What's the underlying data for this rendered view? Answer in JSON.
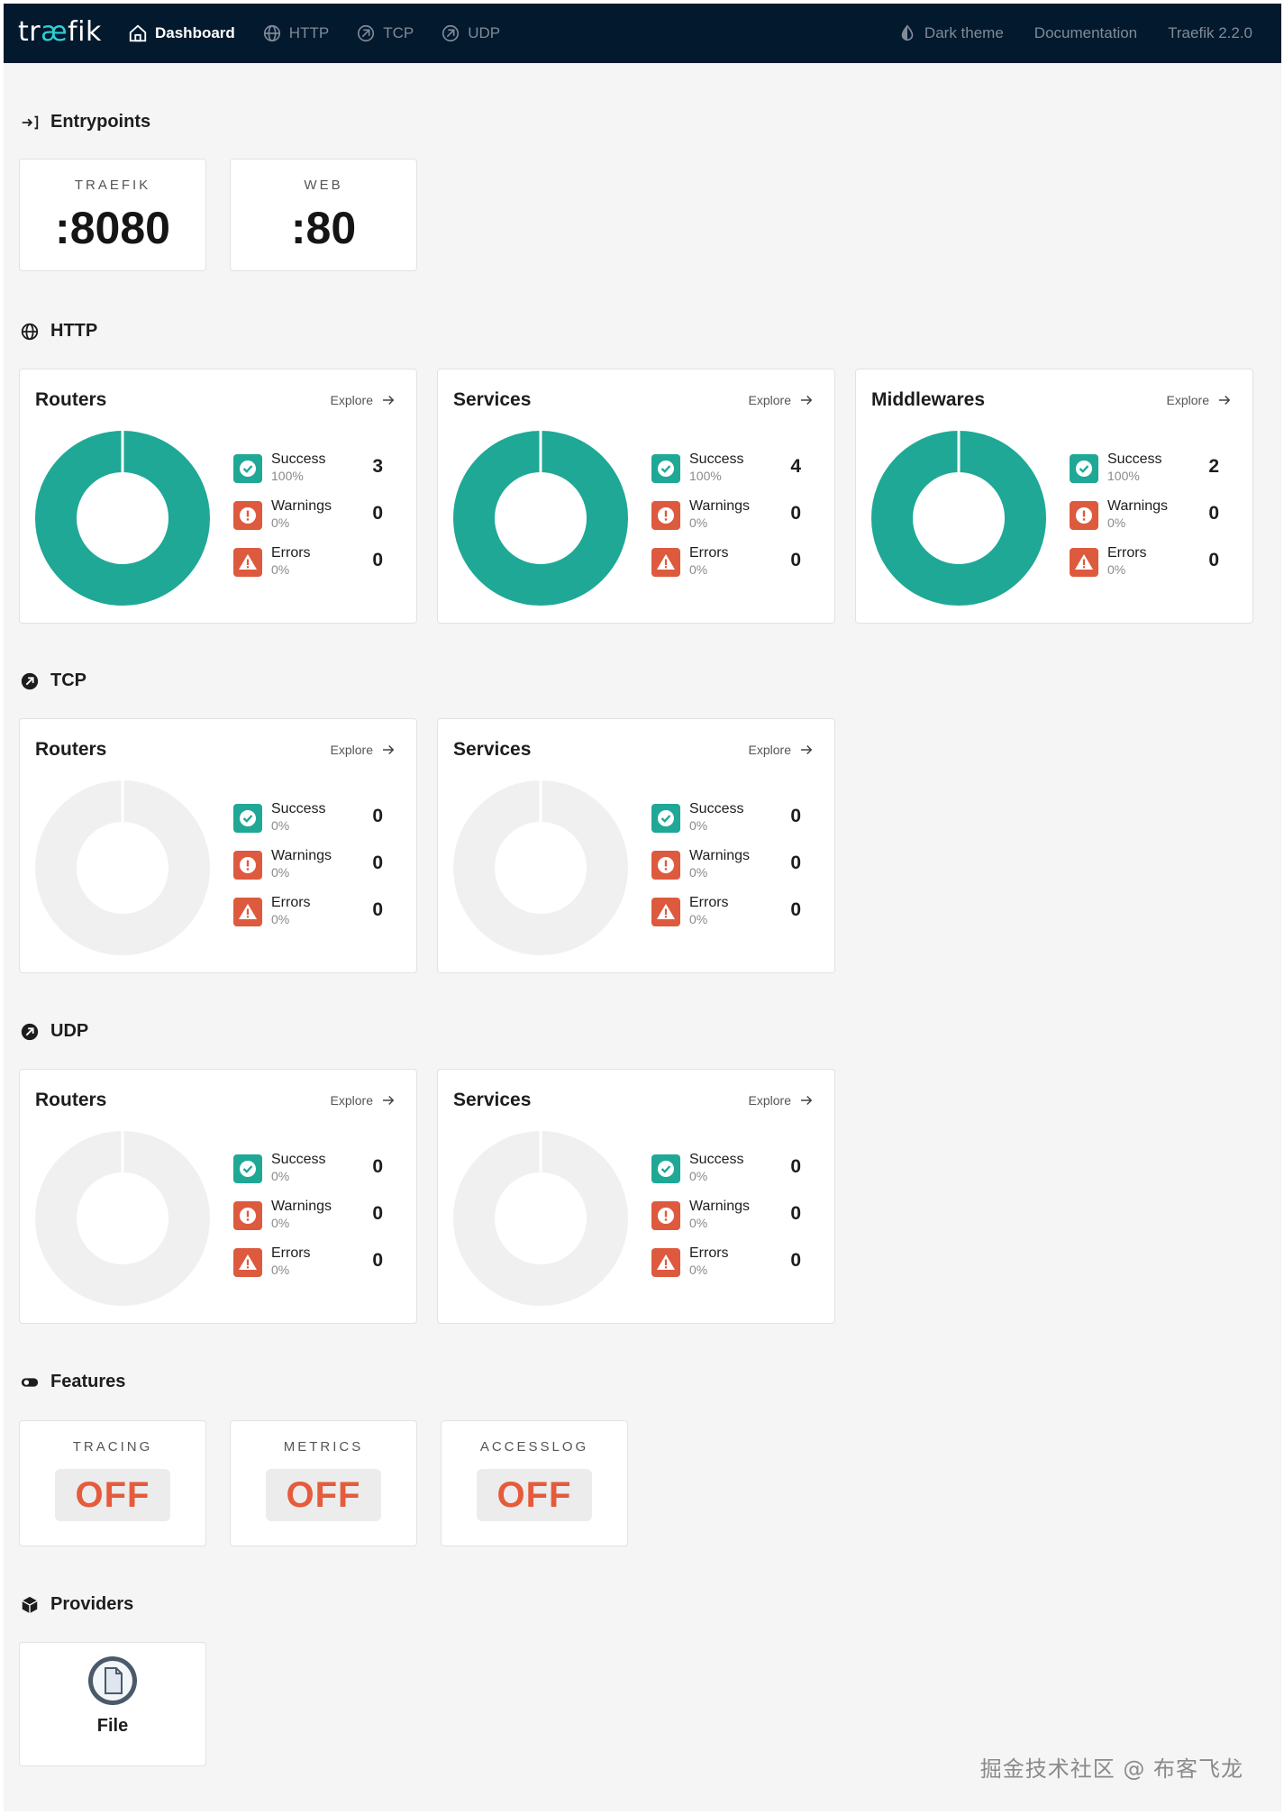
{
  "app": {
    "logo_prefix": "tr",
    "logo_ae": "æ",
    "logo_suffix": "fik"
  },
  "nav": {
    "items": [
      {
        "label": "Dashboard",
        "icon": "home-icon",
        "active": true
      },
      {
        "label": "HTTP",
        "icon": "globe-icon",
        "active": false
      },
      {
        "label": "TCP",
        "icon": "tcp-icon",
        "active": false
      },
      {
        "label": "UDP",
        "icon": "udp-icon",
        "active": false
      }
    ],
    "right": {
      "theme": "Dark theme",
      "docs": "Documentation",
      "version": "Traefik 2.2.0"
    }
  },
  "entrypoints": {
    "title": "Entrypoints",
    "items": [
      {
        "name": "TRAEFIK",
        "port": ":8080"
      },
      {
        "name": "WEB",
        "port": ":80"
      }
    ]
  },
  "sections": {
    "http": {
      "title": "HTTP",
      "cards": [
        {
          "title": "Routers",
          "explore": "Explore",
          "success": 3,
          "success_pct": "100%",
          "warnings": 0,
          "warnings_pct": "0%",
          "errors": 0,
          "errors_pct": "0%"
        },
        {
          "title": "Services",
          "explore": "Explore",
          "success": 4,
          "success_pct": "100%",
          "warnings": 0,
          "warnings_pct": "0%",
          "errors": 0,
          "errors_pct": "0%"
        },
        {
          "title": "Middlewares",
          "explore": "Explore",
          "success": 2,
          "success_pct": "100%",
          "warnings": 0,
          "warnings_pct": "0%",
          "errors": 0,
          "errors_pct": "0%"
        }
      ]
    },
    "tcp": {
      "title": "TCP",
      "cards": [
        {
          "title": "Routers",
          "explore": "Explore",
          "success": 0,
          "success_pct": "0%",
          "warnings": 0,
          "warnings_pct": "0%",
          "errors": 0,
          "errors_pct": "0%"
        },
        {
          "title": "Services",
          "explore": "Explore",
          "success": 0,
          "success_pct": "0%",
          "warnings": 0,
          "warnings_pct": "0%",
          "errors": 0,
          "errors_pct": "0%"
        }
      ]
    },
    "udp": {
      "title": "UDP",
      "cards": [
        {
          "title": "Routers",
          "explore": "Explore",
          "success": 0,
          "success_pct": "0%",
          "warnings": 0,
          "warnings_pct": "0%",
          "errors": 0,
          "errors_pct": "0%"
        },
        {
          "title": "Services",
          "explore": "Explore",
          "success": 0,
          "success_pct": "0%",
          "warnings": 0,
          "warnings_pct": "0%",
          "errors": 0,
          "errors_pct": "0%"
        }
      ]
    }
  },
  "labels": {
    "success": "Success",
    "warnings": "Warnings",
    "errors": "Errors"
  },
  "features": {
    "title": "Features",
    "items": [
      {
        "name": "TRACING",
        "state": "OFF"
      },
      {
        "name": "METRICS",
        "state": "OFF"
      },
      {
        "name": "ACCESSLOG",
        "state": "OFF"
      }
    ]
  },
  "providers": {
    "title": "Providers",
    "items": [
      {
        "name": "File",
        "icon": "file-icon"
      }
    ]
  },
  "watermark": "掘金技术社区 @ 布客飞龙",
  "colors": {
    "topbar": "#03192d",
    "success": "#1fa896",
    "warning": "#dd5a3e",
    "error": "#dd5a3e",
    "empty_ring": "#f0f0f0",
    "off_text": "#e55b3b"
  }
}
